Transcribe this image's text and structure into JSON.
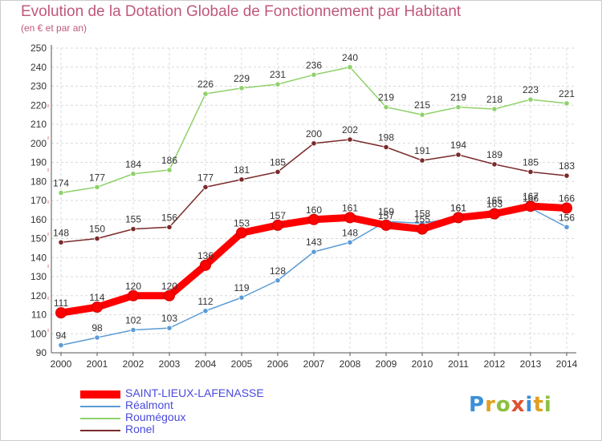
{
  "header": {
    "title": "Evolution de la Dotation Globale de Fonctionnement par Habitant",
    "subtitle": "(en € et par an)"
  },
  "logo": {
    "text": "Proxiti",
    "letters": [
      "P",
      "r",
      "o",
      "x",
      "i",
      "t",
      "i"
    ],
    "colors": [
      "#3a8fd8",
      "#e0a020",
      "#8cc040",
      "#e05030",
      "#3a8fd8",
      "#e0a020",
      "#8cc040"
    ]
  },
  "chart_data": {
    "type": "line",
    "title": "Evolution de la Dotation Globale de Fonctionnement par Habitant",
    "subtitle": "(en € et par an)",
    "xlabel": "",
    "ylabel": "",
    "x": [
      "2000",
      "2001",
      "2002",
      "2003",
      "2004",
      "2005",
      "2006",
      "2007",
      "2008",
      "2009",
      "2010",
      "2011",
      "2012",
      "2013",
      "2014"
    ],
    "ylim": [
      90,
      250
    ],
    "yticks": [
      90,
      100,
      110,
      120,
      130,
      140,
      150,
      160,
      170,
      180,
      190,
      200,
      210,
      220,
      230,
      240,
      250
    ],
    "grid": true,
    "legend_position": "bottom-left",
    "series": [
      {
        "name": "SAINT-LIEUX-LAFENASSE",
        "color": "#ff0000",
        "values": [
          111,
          114,
          120,
          120,
          136,
          153,
          157,
          160,
          161,
          157,
          155,
          161,
          163,
          167,
          166
        ],
        "labels": [
          "111",
          "114",
          "120",
          "120",
          "136",
          "153",
          "157",
          "160",
          "161",
          "157",
          "155",
          "161",
          "163",
          "167",
          "166"
        ]
      },
      {
        "name": "Réalmont",
        "color": "#5b9bd5",
        "values": [
          94,
          98,
          102,
          103,
          112,
          119,
          128,
          143,
          148,
          159,
          158,
          161,
          165,
          166,
          156
        ],
        "labels": [
          "94",
          "98",
          "102",
          "103",
          "112",
          "119",
          "128",
          "143",
          "148",
          "159",
          "158",
          "161",
          "165",
          "166",
          "156"
        ]
      },
      {
        "name": "Roumégoux",
        "color": "#8fd16a",
        "values": [
          174,
          177,
          184,
          186,
          226,
          229,
          231,
          236,
          240,
          219,
          215,
          219,
          218,
          223,
          221
        ],
        "labels": [
          "174",
          "177",
          "184",
          "186",
          "226",
          "229",
          "231",
          "236",
          "240",
          "219",
          "215",
          "219",
          "218",
          "223",
          "221"
        ]
      },
      {
        "name": "Ronel",
        "color": "#7a2a2a",
        "values": [
          148,
          150,
          155,
          156,
          177,
          181,
          185,
          200,
          202,
          198,
          191,
          194,
          189,
          185,
          183
        ],
        "labels": [
          "148",
          "150",
          "155",
          "156",
          "177",
          "181",
          "185",
          "200",
          "202",
          "198",
          "191",
          "194",
          "189",
          "185",
          "183"
        ]
      }
    ]
  }
}
